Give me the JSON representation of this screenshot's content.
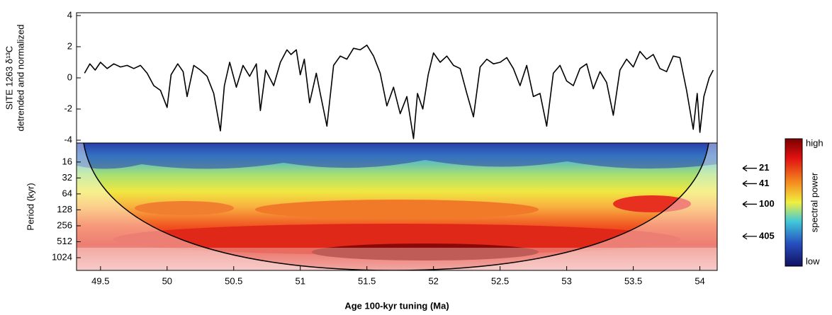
{
  "chart_data": [
    {
      "type": "line",
      "ylabel": [
        "SITE 1263 δ¹³C",
        "detrended and normalized"
      ],
      "xlim": [
        49.32,
        54.13
      ],
      "ylim": [
        -4.18,
        4.18
      ],
      "yticks": [
        4,
        2,
        0,
        -2,
        -4
      ],
      "color": "#000000",
      "x": [
        49.38,
        49.42,
        49.46,
        49.5,
        49.55,
        49.6,
        49.65,
        49.7,
        49.75,
        49.8,
        49.85,
        49.9,
        49.95,
        50.0,
        50.03,
        50.08,
        50.12,
        50.15,
        50.2,
        50.25,
        50.3,
        50.35,
        50.4,
        50.43,
        50.47,
        50.52,
        50.57,
        50.62,
        50.67,
        50.7,
        50.74,
        50.8,
        50.85,
        50.9,
        50.93,
        50.97,
        51.0,
        51.03,
        51.07,
        51.12,
        51.15,
        51.2,
        51.25,
        51.3,
        51.35,
        51.4,
        51.45,
        51.5,
        51.55,
        51.6,
        51.65,
        51.7,
        51.75,
        51.8,
        51.85,
        51.88,
        51.92,
        51.96,
        52.0,
        52.05,
        52.1,
        52.15,
        52.2,
        52.25,
        52.3,
        52.35,
        52.4,
        52.45,
        52.5,
        52.55,
        52.6,
        52.65,
        52.7,
        52.75,
        52.8,
        52.85,
        52.9,
        52.95,
        53.0,
        53.05,
        53.1,
        53.15,
        53.2,
        53.25,
        53.3,
        53.35,
        53.4,
        53.45,
        53.5,
        53.55,
        53.6,
        53.65,
        53.7,
        53.75,
        53.8,
        53.85,
        53.9,
        53.95,
        53.98,
        54.0,
        54.03,
        54.07,
        54.1
      ],
      "values": [
        0.3,
        0.9,
        0.5,
        1.0,
        0.6,
        0.9,
        0.7,
        0.8,
        0.6,
        0.8,
        0.3,
        -0.5,
        -0.8,
        -1.9,
        0.2,
        0.9,
        0.4,
        -1.2,
        0.8,
        0.5,
        0.1,
        -1.0,
        -3.4,
        -0.5,
        1.0,
        -0.6,
        0.8,
        0.1,
        0.9,
        -2.1,
        0.5,
        -0.5,
        1.0,
        1.8,
        1.5,
        1.8,
        0.2,
        1.2,
        -1.6,
        0.3,
        -1.0,
        -3.1,
        0.8,
        1.4,
        1.2,
        1.9,
        1.8,
        2.1,
        1.4,
        0.3,
        -1.8,
        -0.6,
        -2.3,
        -1.2,
        -3.9,
        -1.0,
        -2.0,
        0.2,
        1.6,
        1.0,
        1.4,
        0.8,
        0.6,
        -1.0,
        -2.5,
        0.7,
        1.2,
        0.9,
        1.0,
        1.3,
        0.6,
        -0.5,
        0.8,
        -1.2,
        -1.0,
        -3.1,
        0.3,
        0.8,
        -0.2,
        -0.5,
        0.6,
        0.9,
        -0.7,
        0.4,
        -0.3,
        -2.4,
        0.5,
        1.2,
        0.7,
        1.7,
        1.2,
        1.5,
        0.6,
        0.4,
        1.4,
        1.3,
        -0.8,
        -3.3,
        -1.0,
        -3.5,
        -1.2,
        0.0,
        0.5
      ]
    },
    {
      "type": "wavelet",
      "ylabel": "Period (kyr)",
      "xlabel": "Age 100-kyr tuning (Ma)",
      "xlim": [
        49.32,
        54.13
      ],
      "xticks": [
        49.5,
        50,
        50.5,
        51,
        51.5,
        52,
        52.5,
        53,
        53.5,
        54
      ],
      "ylim": [
        7,
        1780
      ],
      "yticks": [
        16,
        32,
        64,
        128,
        256,
        512,
        1024
      ],
      "log_scale": true,
      "cycle_periods": [
        21,
        41,
        100,
        405
      ],
      "colorbar": {
        "high": "high",
        "low": "low",
        "title": "spectral power"
      }
    }
  ]
}
